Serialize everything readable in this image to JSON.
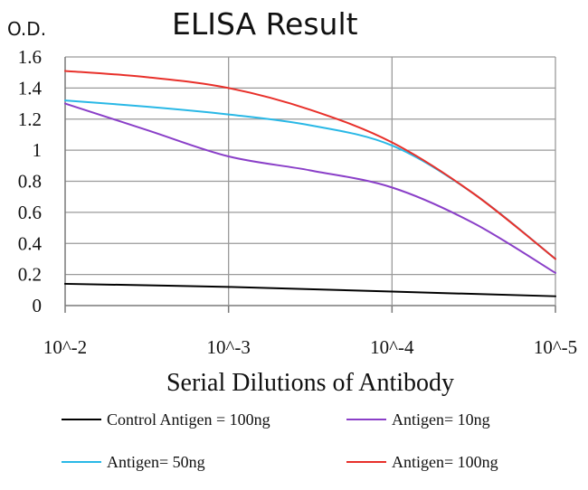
{
  "chart_data": {
    "type": "line",
    "title": "ELISA Result",
    "ylabel": "O.D.",
    "xlabel": "Serial Dilutions of Antibody",
    "x_categories": [
      "10^-2",
      "10^-3",
      "10^-4",
      "10^-5"
    ],
    "x_scale": "log",
    "ylim": [
      0,
      1.6
    ],
    "y_ticks": [
      0,
      0.2,
      0.4,
      0.6,
      0.8,
      1,
      1.2,
      1.4,
      1.6
    ],
    "y_tick_labels": [
      "0",
      "0.2",
      "0.4",
      "0.6",
      "0.8",
      "1",
      "1.2",
      "1.4",
      "1.6"
    ],
    "grid": true,
    "legend_position": "bottom",
    "series": [
      {
        "name": "Control Antigen = 100ng",
        "color": "#000000",
        "points": [
          [
            0,
            0.14
          ],
          [
            1,
            0.12
          ],
          [
            2,
            0.09
          ],
          [
            3,
            0.06
          ]
        ]
      },
      {
        "name": "Antigen= 10ng",
        "color": "#8a3fc8",
        "points": [
          [
            0,
            1.3
          ],
          [
            0.5,
            1.13
          ],
          [
            1,
            0.96
          ],
          [
            1.5,
            0.87
          ],
          [
            2,
            0.76
          ],
          [
            2.5,
            0.53
          ],
          [
            3,
            0.21
          ]
        ]
      },
      {
        "name": "Antigen= 50ng",
        "color": "#29b8e6",
        "points": [
          [
            0,
            1.32
          ],
          [
            0.5,
            1.28
          ],
          [
            1,
            1.23
          ],
          [
            1.5,
            1.16
          ],
          [
            2,
            1.03
          ],
          [
            2.5,
            0.72
          ],
          [
            3,
            0.3
          ]
        ]
      },
      {
        "name": "Antigen= 100ng",
        "color": "#e8302a",
        "points": [
          [
            0,
            1.51
          ],
          [
            0.5,
            1.47
          ],
          [
            1,
            1.4
          ],
          [
            1.5,
            1.26
          ],
          [
            2,
            1.05
          ],
          [
            2.5,
            0.72
          ],
          [
            3,
            0.3
          ]
        ]
      }
    ]
  }
}
